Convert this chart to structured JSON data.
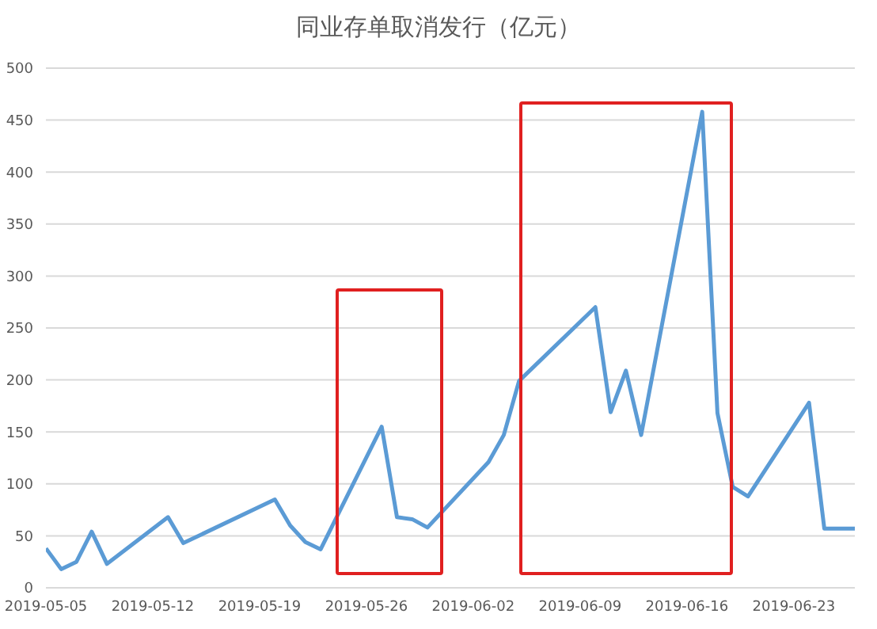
{
  "chart_data": {
    "type": "line",
    "title": "同业存单取消发行（亿元）",
    "x": [
      "2019-05-05",
      "2019-05-06",
      "2019-05-07",
      "2019-05-08",
      "2019-05-09",
      "2019-05-13",
      "2019-05-14",
      "2019-05-20",
      "2019-05-21",
      "2019-05-22",
      "2019-05-23",
      "2019-05-27",
      "2019-05-28",
      "2019-05-29",
      "2019-05-30",
      "2019-06-03",
      "2019-06-04",
      "2019-06-05",
      "2019-06-10",
      "2019-06-11",
      "2019-06-12",
      "2019-06-13",
      "2019-06-17",
      "2019-06-18",
      "2019-06-19",
      "2019-06-20",
      "2019-06-24",
      "2019-06-25",
      "2019-06-27"
    ],
    "series": [
      {
        "color": "#5b9bd5",
        "values": [
          38,
          18,
          25,
          54,
          23,
          68,
          43,
          85,
          60,
          44,
          37,
          155,
          68,
          66,
          58,
          121,
          147,
          199,
          270,
          169,
          209,
          147,
          458,
          168,
          97,
          88,
          178,
          57,
          57
        ]
      }
    ],
    "xlim": [
      "2019-05-05",
      "2019-06-27"
    ],
    "xticks": [
      "2019-05-05",
      "2019-05-12",
      "2019-05-19",
      "2019-05-26",
      "2019-06-02",
      "2019-06-09",
      "2019-06-16",
      "2019-06-23"
    ],
    "ylim": [
      0,
      500
    ],
    "yticks": [
      0,
      50,
      100,
      150,
      200,
      250,
      300,
      350,
      400,
      450,
      500
    ],
    "grid": "y",
    "legend": false,
    "marker": "none",
    "line_style": "solid"
  }
}
